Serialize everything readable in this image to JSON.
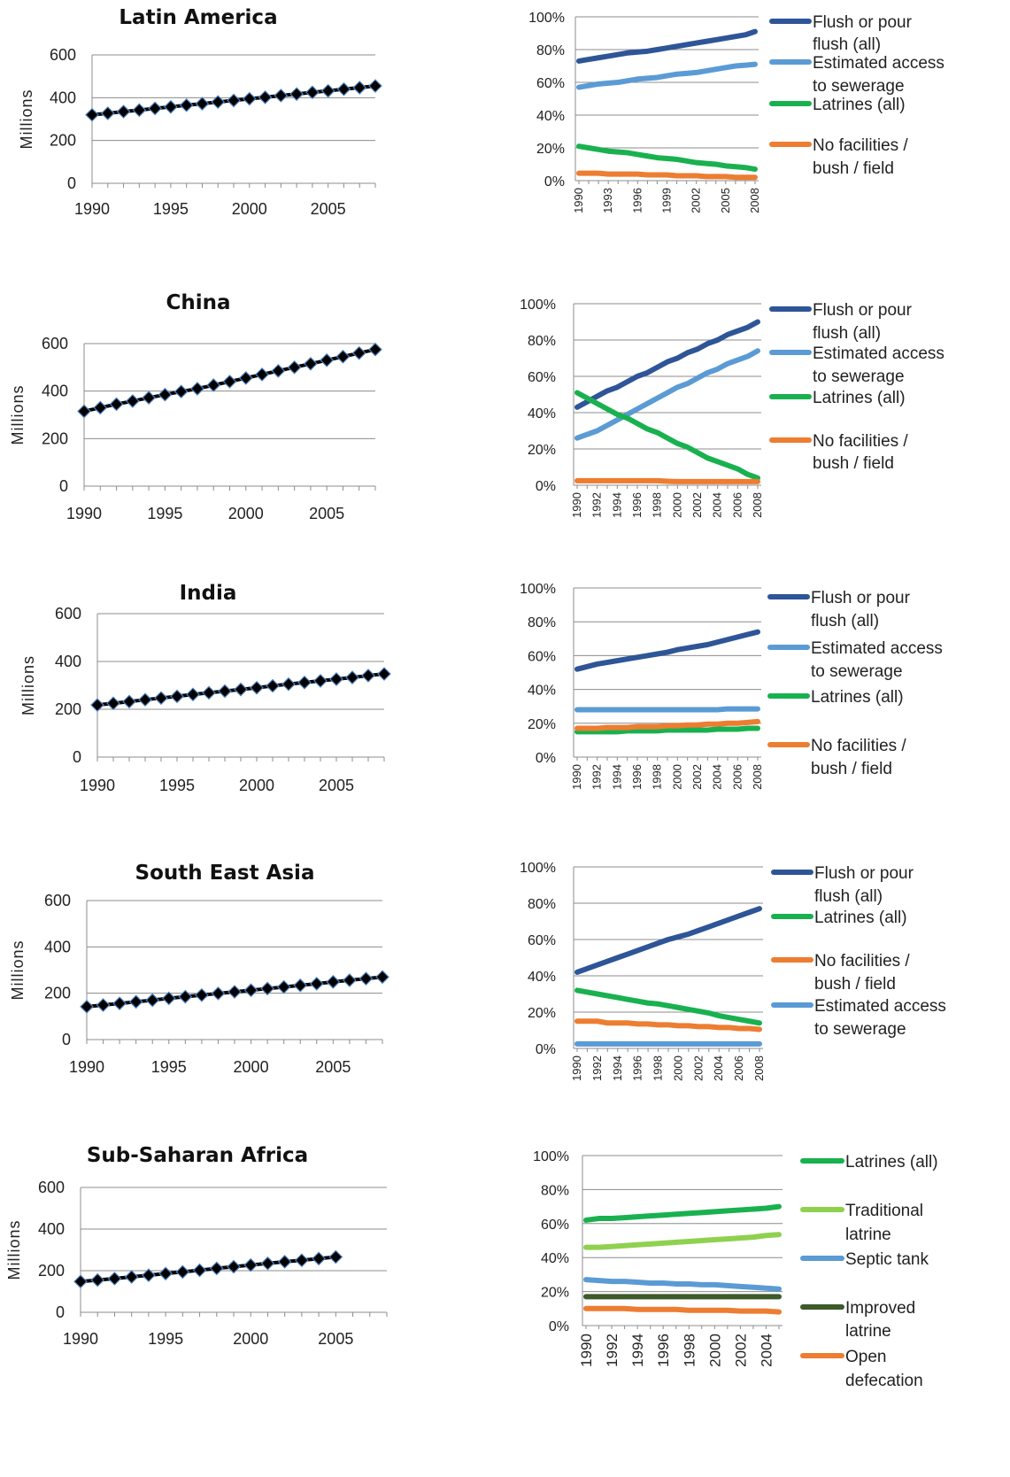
{
  "chart_data": [
    {
      "id": "latin-america-pop",
      "type": "line",
      "title": "Latin America",
      "ylabel": "Millions",
      "ylim": [
        0,
        600
      ],
      "yticks": [
        0,
        200,
        400,
        600
      ],
      "xticks": [
        1990,
        1995,
        2000,
        2005
      ],
      "x": [
        1990,
        1991,
        1992,
        1993,
        1994,
        1995,
        1996,
        1997,
        1998,
        1999,
        2000,
        2001,
        2002,
        2003,
        2004,
        2005,
        2006,
        2007,
        2008
      ],
      "series": [
        {
          "values": [
            320,
            327,
            335,
            342,
            350,
            357,
            365,
            372,
            380,
            387,
            395,
            402,
            410,
            417,
            425,
            432,
            440,
            447,
            455
          ]
        }
      ]
    },
    {
      "id": "latin-america-share",
      "type": "line",
      "ylim": [
        0,
        100
      ],
      "yticks": [
        "0%",
        "20%",
        "40%",
        "60%",
        "80%",
        "100%"
      ],
      "x": [
        1990,
        1991,
        1992,
        1993,
        1994,
        1995,
        1996,
        1997,
        1998,
        1999,
        2000,
        2001,
        2002,
        2003,
        2004,
        2005,
        2006,
        2007,
        2008
      ],
      "xtick_labels": [
        "1990",
        "1993",
        "1996",
        "1999",
        "2002",
        "2005",
        "2008"
      ],
      "series": [
        {
          "name": "Flush or pour flush (all)",
          "color": "#2e5597",
          "values": [
            73,
            74,
            75,
            76,
            77,
            78,
            78.5,
            79,
            80,
            81,
            82,
            83,
            84,
            85,
            86,
            87,
            88,
            89,
            91
          ]
        },
        {
          "name": "Estimated access to sewerage",
          "color": "#5b9bd5",
          "values": [
            57,
            58,
            59,
            59.5,
            60,
            61,
            62,
            62.5,
            63,
            64,
            65,
            65.5,
            66,
            67,
            68,
            69,
            70,
            70.5,
            71
          ]
        },
        {
          "name": "Latrines (all)",
          "color": "#19b14f",
          "values": [
            21,
            20,
            19,
            18,
            17.5,
            17,
            16,
            15,
            14,
            13.5,
            13,
            12,
            11,
            10.5,
            10,
            9,
            8.5,
            8,
            7
          ]
        },
        {
          "name": "No facilities / bush / field",
          "color": "#ed7d31",
          "values": [
            4.5,
            4.5,
            4.5,
            4,
            4,
            4,
            4,
            3.5,
            3.5,
            3.5,
            3,
            3,
            3,
            2.5,
            2.5,
            2.5,
            2,
            2,
            2
          ]
        }
      ]
    },
    {
      "id": "china-pop",
      "type": "line",
      "title": "China",
      "ylabel": "Millions",
      "ylim": [
        0,
        600
      ],
      "yticks": [
        0,
        200,
        400,
        600
      ],
      "xticks": [
        1990,
        1995,
        2000,
        2005
      ],
      "x": [
        1990,
        1991,
        1992,
        1993,
        1994,
        1995,
        1996,
        1997,
        1998,
        1999,
        2000,
        2001,
        2002,
        2003,
        2004,
        2005,
        2006,
        2007,
        2008
      ],
      "series": [
        {
          "values": [
            315,
            330,
            345,
            358,
            372,
            385,
            398,
            410,
            425,
            440,
            455,
            470,
            485,
            500,
            515,
            530,
            545,
            560,
            575
          ]
        }
      ]
    },
    {
      "id": "china-share",
      "type": "line",
      "ylim": [
        0,
        100
      ],
      "yticks": [
        "0%",
        "20%",
        "40%",
        "60%",
        "80%",
        "100%"
      ],
      "x": [
        1990,
        1991,
        1992,
        1993,
        1994,
        1995,
        1996,
        1997,
        1998,
        1999,
        2000,
        2001,
        2002,
        2003,
        2004,
        2005,
        2006,
        2007,
        2008
      ],
      "xtick_labels": [
        "1990",
        "1992",
        "1994",
        "1996",
        "1998",
        "2000",
        "2002",
        "2004",
        "2006",
        "2008"
      ],
      "series": [
        {
          "name": "Flush or pour flush (all)",
          "color": "#2e5597",
          "values": [
            43,
            46,
            49,
            52,
            54,
            57,
            60,
            62,
            65,
            68,
            70,
            73,
            75,
            78,
            80,
            83,
            85,
            87,
            90
          ]
        },
        {
          "name": "Estimated access to sewerage",
          "color": "#5b9bd5",
          "values": [
            26,
            28,
            30,
            33,
            36,
            39,
            42,
            45,
            48,
            51,
            54,
            56,
            59,
            62,
            64,
            67,
            69,
            71,
            74
          ]
        },
        {
          "name": "Latrines (all)",
          "color": "#19b14f",
          "values": [
            51,
            48,
            45,
            42,
            39,
            37,
            34,
            31,
            29,
            26,
            23,
            21,
            18,
            15,
            13,
            11,
            9,
            6,
            4
          ]
        },
        {
          "name": "No facilities / bush / field",
          "color": "#ed7d31",
          "values": [
            2.5,
            2.5,
            2.5,
            2.5,
            2.5,
            2.5,
            2.5,
            2.5,
            2.5,
            2.2,
            2,
            2,
            2,
            2,
            2,
            2,
            2,
            2,
            2
          ]
        }
      ]
    },
    {
      "id": "india-pop",
      "type": "line",
      "title": "India",
      "ylabel": "Millions",
      "ylim": [
        0,
        600
      ],
      "yticks": [
        0,
        200,
        400,
        600
      ],
      "xticks": [
        1990,
        1995,
        2000,
        2005
      ],
      "x": [
        1990,
        1991,
        1992,
        1993,
        1994,
        1995,
        1996,
        1997,
        1998,
        1999,
        2000,
        2001,
        2002,
        2003,
        2004,
        2005,
        2006,
        2007,
        2008
      ],
      "series": [
        {
          "values": [
            218,
            225,
            232,
            240,
            247,
            254,
            262,
            269,
            276,
            283,
            290,
            298,
            305,
            312,
            319,
            326,
            333,
            341,
            348
          ]
        }
      ]
    },
    {
      "id": "india-share",
      "type": "line",
      "ylim": [
        0,
        100
      ],
      "yticks": [
        "0%",
        "20%",
        "40%",
        "60%",
        "80%",
        "100%"
      ],
      "x": [
        1990,
        1991,
        1992,
        1993,
        1994,
        1995,
        1996,
        1997,
        1998,
        1999,
        2000,
        2001,
        2002,
        2003,
        2004,
        2005,
        2006,
        2007,
        2008
      ],
      "xtick_labels": [
        "1990",
        "1992",
        "1994",
        "1996",
        "1998",
        "2000",
        "2002",
        "2004",
        "2006",
        "2008"
      ],
      "series": [
        {
          "name": "Flush or pour flush (all)",
          "color": "#2e5597",
          "values": [
            52,
            53.5,
            55,
            56,
            57,
            58,
            59,
            60,
            61,
            62,
            63.5,
            64.5,
            65.5,
            66.5,
            68,
            69.5,
            71,
            72.5,
            74
          ]
        },
        {
          "name": "Estimated access to sewerage",
          "color": "#5b9bd5",
          "values": [
            28,
            28,
            28,
            28,
            28,
            28,
            28,
            28,
            28,
            28,
            28,
            28,
            28,
            28,
            28,
            28.5,
            28.5,
            28.5,
            28.5
          ]
        },
        {
          "name": "Latrines (all)",
          "color": "#19b14f",
          "values": [
            15,
            15,
            15,
            15,
            15,
            15.5,
            15.5,
            15.5,
            15.5,
            16,
            16,
            16,
            16,
            16,
            16.5,
            16.5,
            16.5,
            17,
            17
          ]
        },
        {
          "name": "No facilities / bush / field",
          "color": "#ed7d31",
          "values": [
            17,
            17,
            17,
            17.5,
            17.5,
            17.5,
            18,
            18,
            18,
            18.5,
            18.5,
            19,
            19,
            19.5,
            19.5,
            20,
            20,
            20.5,
            21
          ]
        }
      ]
    },
    {
      "id": "south-east-asia-pop",
      "type": "line",
      "title": "South East Asia",
      "ylabel": "Millions",
      "ylim": [
        0,
        600
      ],
      "yticks": [
        0,
        200,
        400,
        600
      ],
      "xticks": [
        1990,
        1995,
        2000,
        2005
      ],
      "x": [
        1990,
        1991,
        1992,
        1993,
        1994,
        1995,
        1996,
        1997,
        1998,
        1999,
        2000,
        2001,
        2002,
        2003,
        2004,
        2005,
        2006,
        2007,
        2008
      ],
      "series": [
        {
          "values": [
            142,
            149,
            156,
            163,
            170,
            178,
            185,
            192,
            199,
            206,
            213,
            220,
            227,
            234,
            241,
            249,
            256,
            263,
            270
          ]
        }
      ]
    },
    {
      "id": "south-east-asia-share",
      "type": "line",
      "ylim": [
        0,
        100
      ],
      "yticks": [
        "0%",
        "20%",
        "40%",
        "60%",
        "80%",
        "100%"
      ],
      "x": [
        1990,
        1991,
        1992,
        1993,
        1994,
        1995,
        1996,
        1997,
        1998,
        1999,
        2000,
        2001,
        2002,
        2003,
        2004,
        2005,
        2006,
        2007,
        2008
      ],
      "xtick_labels": [
        "1990",
        "1992",
        "1994",
        "1996",
        "1998",
        "2000",
        "2002",
        "2004",
        "2006",
        "2008"
      ],
      "series": [
        {
          "name": "Flush or pour flush (all)",
          "color": "#2e5597",
          "values": [
            42,
            44,
            46,
            48,
            50,
            52,
            54,
            56,
            58,
            60,
            61.5,
            63,
            65,
            67,
            69,
            71,
            73,
            75,
            77
          ]
        },
        {
          "name": "Latrines (all)",
          "color": "#19b14f",
          "values": [
            32,
            31,
            30,
            29,
            28,
            27,
            26,
            25,
            24.5,
            23.5,
            22.5,
            21.5,
            20.5,
            19.5,
            18,
            17,
            16,
            15,
            14
          ]
        },
        {
          "name": "No facilities / bush / field",
          "color": "#ed7d31",
          "values": [
            15,
            15,
            15,
            14,
            14,
            14,
            13.5,
            13.5,
            13,
            13,
            12.5,
            12.5,
            12,
            12,
            11.5,
            11.5,
            11,
            11,
            10.5
          ]
        },
        {
          "name": "Estimated access to sewerage",
          "color": "#5b9bd5",
          "values": [
            2.5,
            2.5,
            2.5,
            2.5,
            2.5,
            2.5,
            2.5,
            2.5,
            2.5,
            2.5,
            2.5,
            2.5,
            2.5,
            2.5,
            2.5,
            2.5,
            2.5,
            2.5,
            2.5
          ]
        }
      ]
    },
    {
      "id": "sub-saharan-africa-pop",
      "type": "line",
      "title": "Sub-Saharan Africa",
      "ylabel": "Millions",
      "ylim": [
        0,
        600
      ],
      "yticks": [
        0,
        200,
        400,
        600
      ],
      "xticks": [
        1990,
        1995,
        2000,
        2005
      ],
      "x": [
        1990,
        1991,
        1992,
        1993,
        1994,
        1995,
        1996,
        1997,
        1998,
        1999,
        2000,
        2001,
        2002,
        2003,
        2004,
        2005
      ],
      "series": [
        {
          "values": [
            148,
            155,
            162,
            170,
            178,
            186,
            194,
            202,
            211,
            219,
            227,
            235,
            243,
            250,
            258,
            266
          ]
        }
      ]
    },
    {
      "id": "sub-saharan-africa-share",
      "type": "line",
      "ylim": [
        0,
        100
      ],
      "yticks": [
        "0%",
        "20%",
        "40%",
        "60%",
        "80%",
        "100%"
      ],
      "x": [
        1990,
        1991,
        1992,
        1993,
        1994,
        1995,
        1996,
        1997,
        1998,
        1999,
        2000,
        2001,
        2002,
        2003,
        2004,
        2005
      ],
      "xtick_labels": [
        "1990",
        "1992",
        "1994",
        "1996",
        "1998",
        "2000",
        "2002",
        "2004"
      ],
      "series": [
        {
          "name": "Latrines (all)",
          "color": "#19b14f",
          "values": [
            62,
            63,
            63,
            63.5,
            64,
            64.5,
            65,
            65.5,
            66,
            66.5,
            67,
            67.5,
            68,
            68.5,
            69,
            70
          ]
        },
        {
          "name": "Traditional latrine",
          "color": "#8fd14f",
          "values": [
            46,
            46,
            46.5,
            47,
            47.5,
            48,
            48.5,
            49,
            49.5,
            50,
            50.5,
            51,
            51.5,
            52,
            53,
            53.5
          ]
        },
        {
          "name": "Septic tank",
          "color": "#5b9bd5",
          "values": [
            27,
            26.5,
            26,
            26,
            25.5,
            25,
            25,
            24.5,
            24.5,
            24,
            24,
            23.5,
            23,
            22.5,
            22,
            21.5
          ]
        },
        {
          "name": "Improved latrine",
          "color": "#3d5a2a",
          "values": [
            17,
            17,
            17,
            17,
            17,
            17,
            17,
            17,
            17,
            17,
            17,
            17,
            17,
            17,
            17,
            17
          ]
        },
        {
          "name": "Open defecation",
          "color": "#ed7d31",
          "values": [
            10,
            10,
            10,
            10,
            9.5,
            9.5,
            9.5,
            9.5,
            9,
            9,
            9,
            9,
            8.5,
            8.5,
            8.5,
            8
          ]
        }
      ]
    }
  ]
}
